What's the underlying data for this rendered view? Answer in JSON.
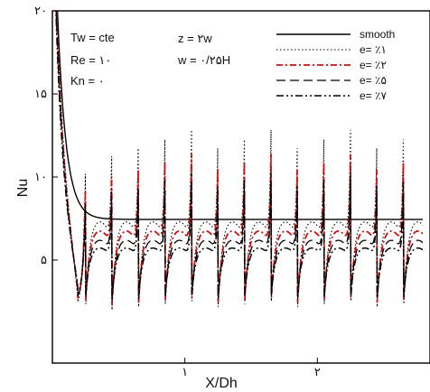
{
  "chart_data": {
    "type": "line",
    "xlabel": "X/Dh",
    "ylabel": "Nu",
    "xlim": [
      0,
      2.85
    ],
    "ylim": [
      -1.2,
      20
    ],
    "x_ticks": [
      {
        "value": 1,
        "label": "۱"
      },
      {
        "value": 2,
        "label": "۲"
      }
    ],
    "y_ticks": [
      {
        "value": 5,
        "label": "۵"
      },
      {
        "value": 10,
        "label": "۱۰"
      },
      {
        "value": 15,
        "label": "۱۵"
      },
      {
        "value": 20,
        "label": "۲۰"
      }
    ],
    "grid": false,
    "legend_position": "top-right",
    "annotations": {
      "left": [
        "Tw = cte",
        "Re = ۱۰",
        "Kn = ۰"
      ],
      "mid": [
        "z = ۲w",
        "w = ۰/۲۵H"
      ]
    },
    "rib_positions": [
      0.25,
      0.45,
      0.65,
      0.85,
      1.05,
      1.25,
      1.45,
      1.65,
      1.85,
      2.05,
      2.25,
      2.45,
      2.65,
      2.85
    ],
    "series": [
      {
        "name": "smooth",
        "color": "#000000",
        "style": "solid",
        "shape": "smooth",
        "entrance": 30,
        "asymptote": 7.45
      },
      {
        "name": "e= ٪۱",
        "color": "#000000",
        "style": "dotted",
        "shape": "ribbed",
        "plateau": 7.6,
        "peak": 10.6,
        "dip": 2.0
      },
      {
        "name": "e= ٪۲",
        "color": "#cc1111",
        "style": "dashdot",
        "shape": "ribbed",
        "plateau": 7.0,
        "peak": 9.5,
        "dip": 2.3
      },
      {
        "name": "e= ٪۵",
        "color": "#000000",
        "style": "longdash",
        "shape": "ribbed",
        "plateau": 6.4,
        "peak": 8.7,
        "dip": 2.5
      },
      {
        "name": "e= ٪۷",
        "color": "#000000",
        "style": "dashdotdot",
        "shape": "ribbed",
        "plateau": 5.9,
        "peak": 8.2,
        "dip": 2.7
      }
    ]
  }
}
